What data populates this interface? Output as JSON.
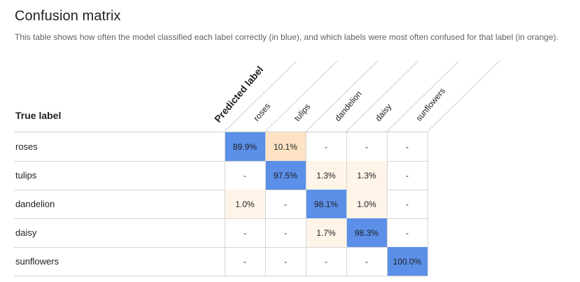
{
  "title": "Confusion matrix",
  "description": "This table shows how often the model classified each label correctly (in blue), and which labels were most often confused for that label (in orange).",
  "true_label_header": "True label",
  "predicted_label_header": "Predicted label",
  "colors": {
    "correct": "#5b8fe8",
    "confused_high": "#fde3c4",
    "confused_low": "#fef4e8"
  },
  "labels": [
    "roses",
    "tulips",
    "dandelion",
    "daisy",
    "sunflowers"
  ],
  "rows": [
    {
      "label": "roses",
      "cells": [
        "89.9%",
        "10.1%",
        "-",
        "-",
        "-"
      ]
    },
    {
      "label": "tulips",
      "cells": [
        "-",
        "97.5%",
        "1.3%",
        "1.3%",
        "-"
      ]
    },
    {
      "label": "dandelion",
      "cells": [
        "1.0%",
        "-",
        "98.1%",
        "1.0%",
        "-"
      ]
    },
    {
      "label": "daisy",
      "cells": [
        "-",
        "-",
        "1.7%",
        "98.3%",
        "-"
      ]
    },
    {
      "label": "sunflowers",
      "cells": [
        "-",
        "-",
        "-",
        "-",
        "100.0%"
      ]
    }
  ],
  "cell_styles": [
    [
      "diag",
      "conf-high",
      "",
      "",
      ""
    ],
    [
      "",
      "diag",
      "conf-low",
      "conf-low",
      ""
    ],
    [
      "conf-low",
      "",
      "diag",
      "conf-low",
      ""
    ],
    [
      "",
      "",
      "conf-low",
      "diag",
      ""
    ],
    [
      "",
      "",
      "",
      "",
      "diag"
    ]
  ]
}
